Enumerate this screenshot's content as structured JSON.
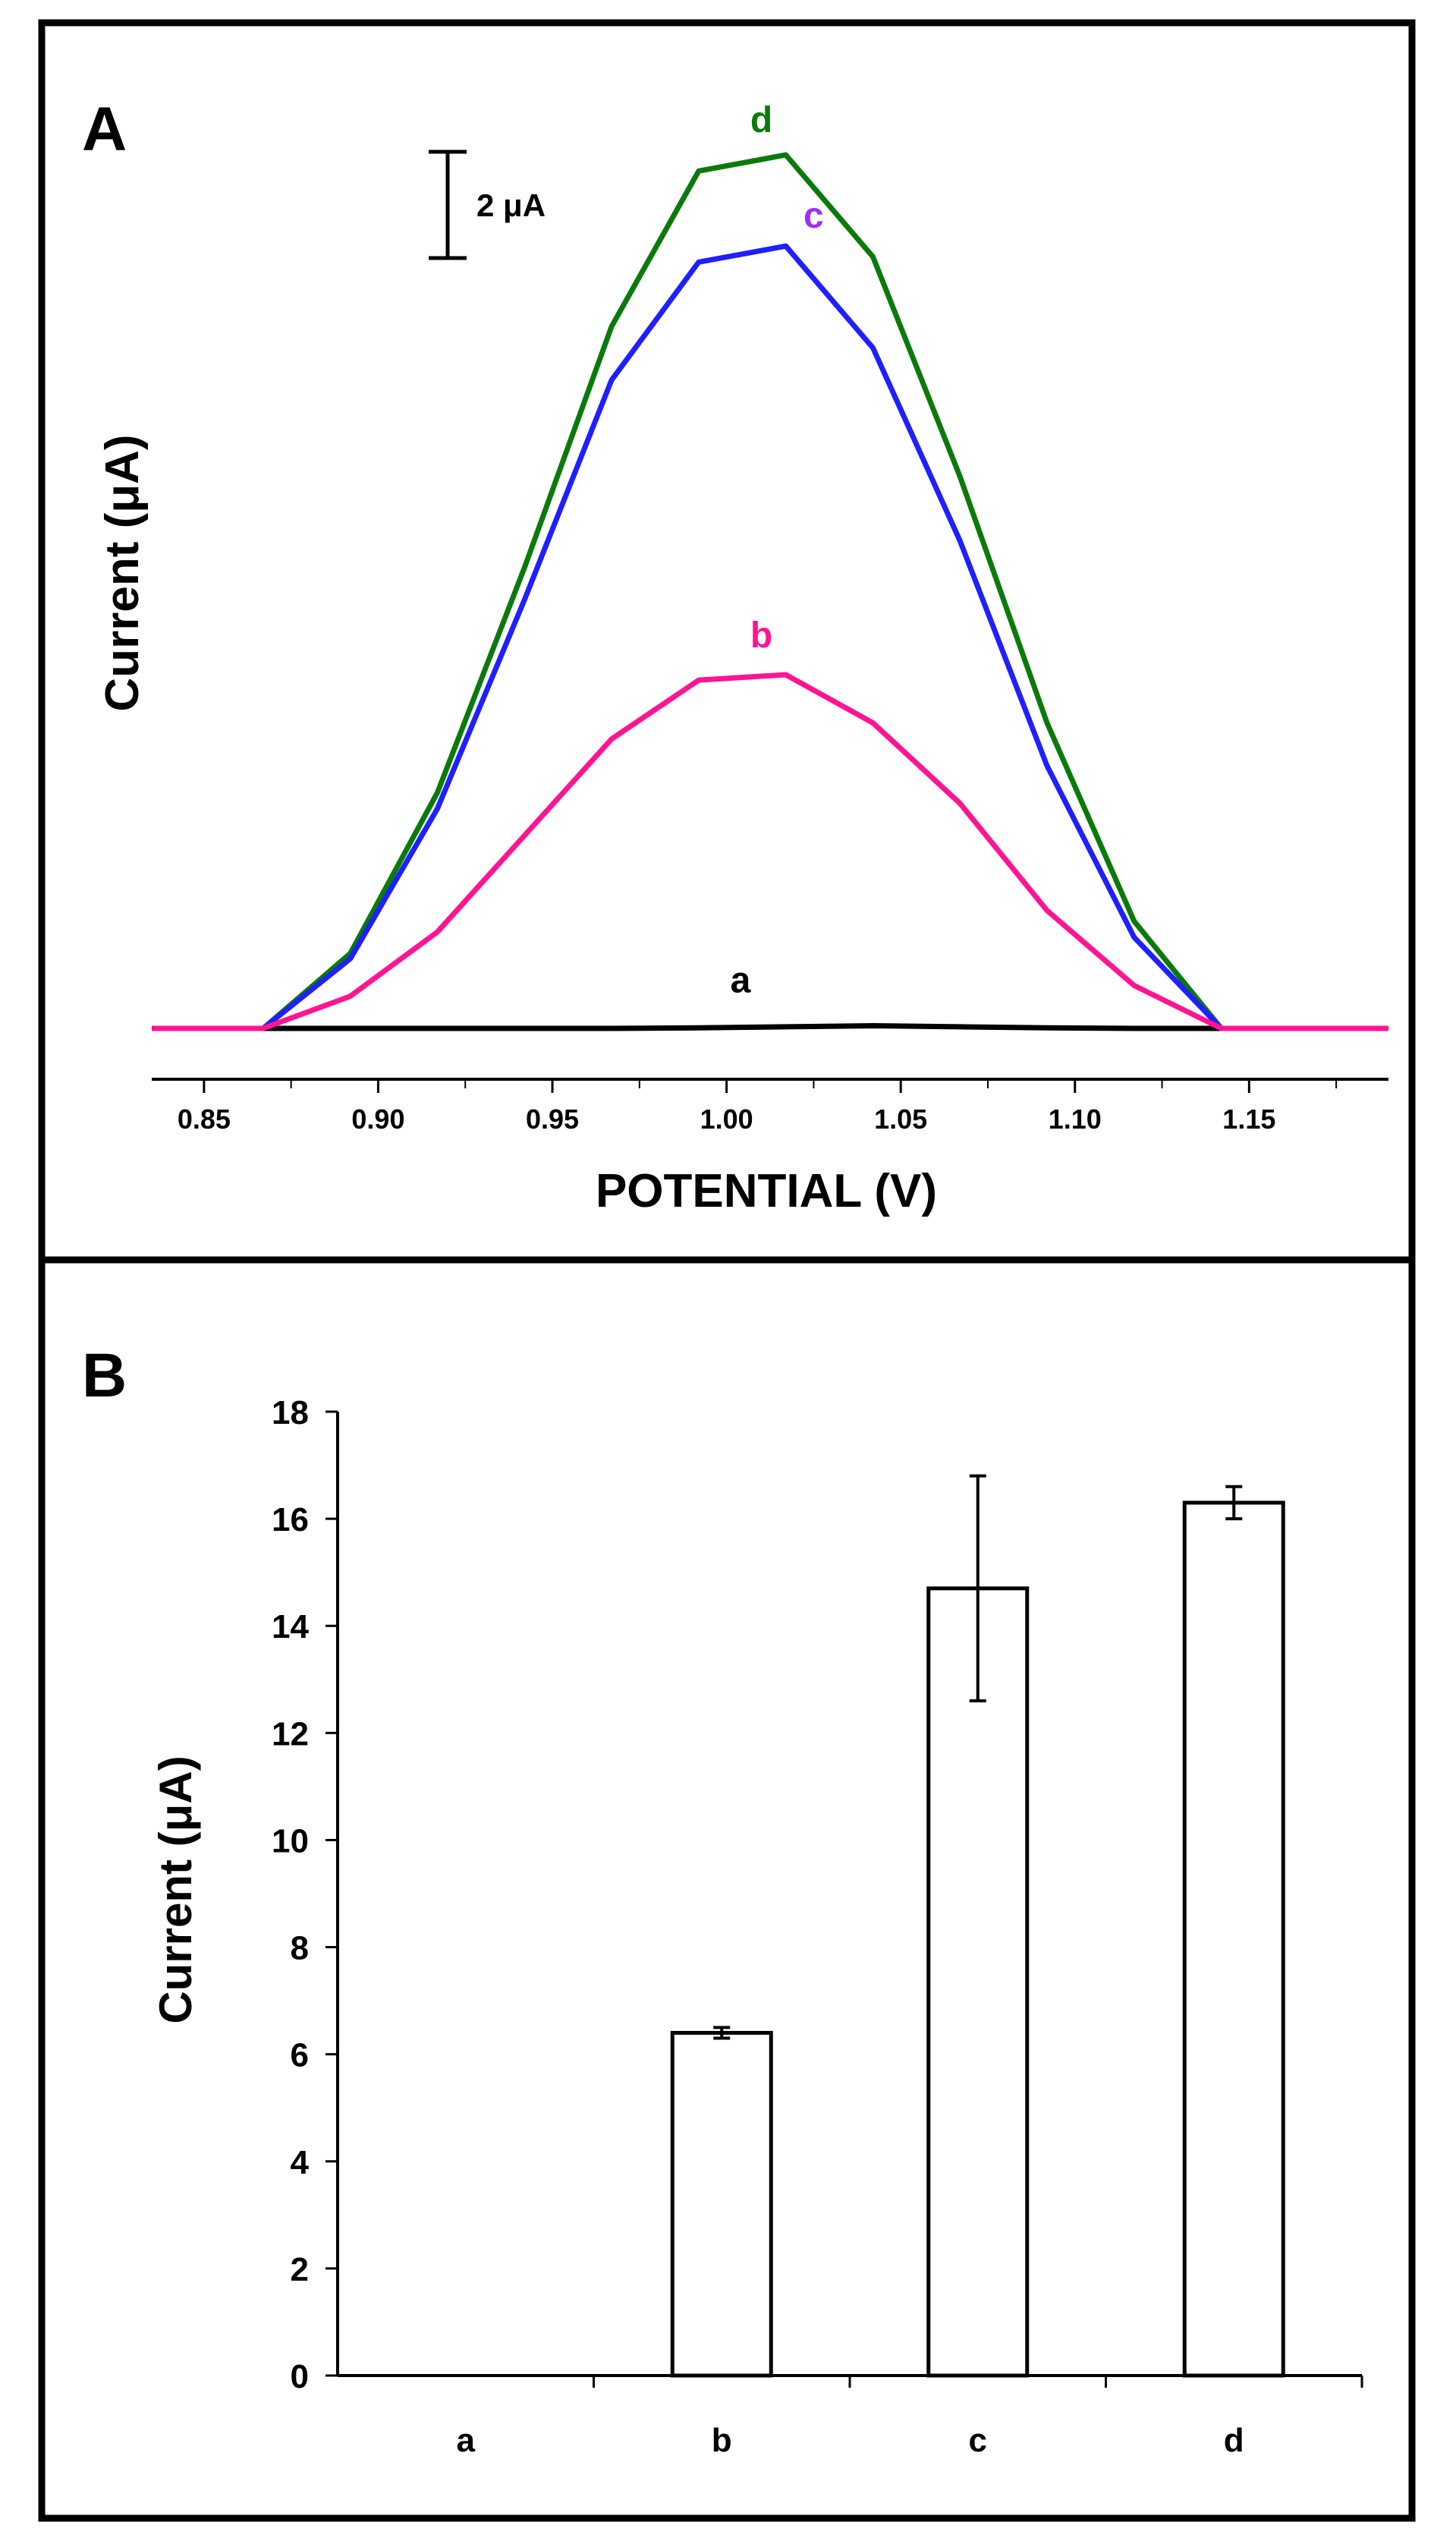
{
  "chart_data": [
    {
      "panel": "A",
      "type": "line",
      "title": "",
      "xlabel": "POTENTIAL (V)",
      "ylabel": "Current (μA)",
      "xlim": [
        0.835,
        1.19
      ],
      "ylim": [
        -1.0,
        17.5
      ],
      "x_ticks": [
        "0.85",
        "0.90",
        "0.95",
        "1.00",
        "1.05",
        "1.10",
        "1.15"
      ],
      "x_tick_values": [
        0.85,
        0.9,
        0.95,
        1.0,
        1.05,
        1.1,
        1.15
      ],
      "scale_bar": {
        "label": "2 μA",
        "value": 2
      },
      "x": [
        0.835,
        0.867,
        0.892,
        0.917,
        0.942,
        0.967,
        0.992,
        1.017,
        1.042,
        1.067,
        1.092,
        1.117,
        1.142,
        1.19
      ],
      "series": [
        {
          "name": "a",
          "label": "a",
          "color": "#000000",
          "values": [
            0,
            0,
            0,
            0,
            0,
            0,
            0.01,
            0.03,
            0.05,
            0.03,
            0.01,
            0,
            0,
            0
          ]
        },
        {
          "name": "b",
          "label": "b",
          "color": "#FF1493",
          "values": [
            0,
            0,
            0.6,
            1.8,
            3.6,
            5.4,
            6.5,
            6.6,
            5.7,
            4.2,
            2.2,
            0.8,
            0,
            0
          ]
        },
        {
          "name": "c",
          "label": "c",
          "color": "#1F1FFF",
          "values": [
            0,
            0,
            1.3,
            4.1,
            8.0,
            12.1,
            14.3,
            14.6,
            12.7,
            9.1,
            4.9,
            1.7,
            0,
            0
          ]
        },
        {
          "name": "d",
          "label": "d",
          "color": "#0A7A0A",
          "values": [
            0,
            0,
            1.4,
            4.4,
            8.6,
            13.1,
            16.0,
            16.3,
            14.4,
            10.3,
            5.7,
            2.0,
            0,
            0
          ]
        }
      ]
    },
    {
      "panel": "B",
      "type": "bar",
      "title": "",
      "xlabel": "",
      "ylabel": "Current (μA)",
      "ylim": [
        0,
        18
      ],
      "y_ticks": [
        "0",
        "2",
        "4",
        "6",
        "8",
        "10",
        "12",
        "14",
        "16",
        "18"
      ],
      "y_tick_values": [
        0,
        2,
        4,
        6,
        8,
        10,
        12,
        14,
        16,
        18
      ],
      "categories": [
        "a",
        "b",
        "c",
        "d"
      ],
      "values": [
        0,
        6.4,
        14.7,
        16.3
      ],
      "errors": [
        0,
        0.1,
        2.1,
        0.3
      ]
    }
  ]
}
